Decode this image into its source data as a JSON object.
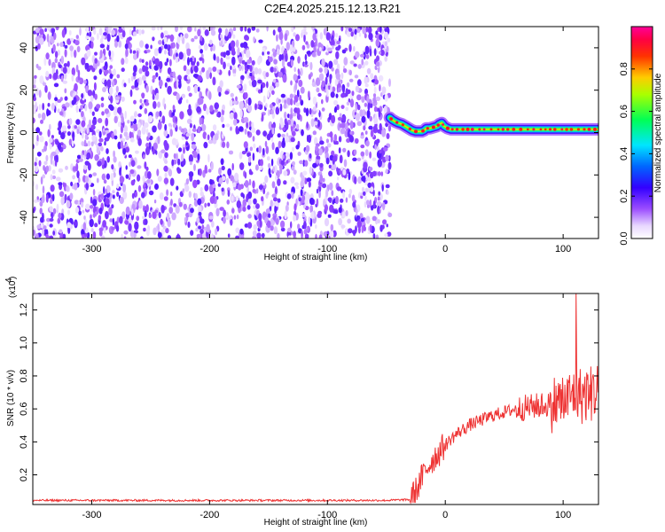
{
  "title": "C2E4.2025.215.12.13.R21",
  "chart_data": [
    {
      "type": "heatmap",
      "title": "C2E4.2025.215.12.13.R21",
      "xlabel": "Height of straight line (km)",
      "ylabel": "Frequency (Hz)",
      "xlim": [
        -350,
        130
      ],
      "ylim": [
        -50,
        50
      ],
      "xticks": [
        -300,
        -200,
        -100,
        0,
        100
      ],
      "yticks": [
        -40,
        -20,
        0,
        20,
        40
      ],
      "colorbar": {
        "label": "Normalized spectral amplitude",
        "range": [
          0.0,
          1.0
        ],
        "ticks": [
          0.0,
          0.2,
          0.4,
          0.6,
          0.8
        ],
        "tick_labels": [
          "0.0",
          "0.2",
          "0.4",
          "0.6",
          "0.8"
        ],
        "colormap": "rainbow (white-violet-blue-cyan-green-yellow-red-magenta)"
      },
      "noise_region": {
        "x": [
          -350,
          -47
        ],
        "amplitude": [
          0.0,
          0.2
        ]
      },
      "signal_ridge": {
        "x": [
          -47,
          -45,
          -42,
          -40,
          -37,
          -34,
          -31,
          -28,
          -25,
          -22,
          -20,
          -18,
          -16,
          -13,
          -10,
          -7,
          -5,
          -3,
          -1,
          2,
          5,
          10,
          20,
          30,
          40,
          50,
          60,
          70,
          80,
          90,
          100,
          110,
          120,
          130
        ],
        "y": [
          7,
          6,
          5,
          4.5,
          4,
          3,
          2,
          1,
          0.5,
          0.5,
          0.5,
          1,
          2,
          2,
          2.5,
          3,
          4,
          4.5,
          3,
          2,
          1.5,
          1.5,
          1.5,
          1.5,
          1.5,
          1.5,
          1.5,
          1.5,
          1.5,
          1.5,
          1.5,
          1.5,
          1.5,
          1.5
        ],
        "peak_amplitude": 0.95
      }
    },
    {
      "type": "line",
      "xlabel": "Height of straight line (km)",
      "ylabel": "SNR (10 * v/v)",
      "y_multiplier": "(x10",
      "y_multiplier_exp": "4",
      "xlim": [
        -350,
        130
      ],
      "ylim": [
        0.02,
        1.3
      ],
      "xticks": [
        -300,
        -200,
        -100,
        0,
        100
      ],
      "yticks": [
        0.2,
        0.4,
        0.6,
        0.8,
        1.0,
        1.2
      ],
      "series": [
        {
          "color": "#ee3333",
          "x": [
            -350,
            -300,
            -250,
            -200,
            -150,
            -100,
            -50,
            -30,
            -25,
            -20,
            -15,
            -10,
            -5,
            0,
            5,
            10,
            20,
            30,
            40,
            50,
            60,
            70,
            80,
            90,
            100,
            105,
            110,
            115,
            120,
            125,
            130
          ],
          "y": [
            0.045,
            0.045,
            0.045,
            0.045,
            0.045,
            0.045,
            0.045,
            0.05,
            0.1,
            0.18,
            0.25,
            0.3,
            0.34,
            0.38,
            0.42,
            0.45,
            0.5,
            0.53,
            0.56,
            0.58,
            0.6,
            0.61,
            0.62,
            0.63,
            0.65,
            0.66,
            0.7,
            0.68,
            0.69,
            0.7,
            0.72
          ]
        }
      ]
    }
  ],
  "labels": {
    "top_xlabel": "Height of straight line (km)",
    "top_ylabel": "Frequency (Hz)",
    "colorbar_label": "Normalized spectral amplitude",
    "bottom_xlabel": "Height of straight line (km)",
    "bottom_ylabel": "SNR (10 * v/v)",
    "bottom_multiplier": "(x10",
    "bottom_multiplier_exp": "4",
    "x_tick_labels": [
      "-300",
      "-200",
      "-100",
      "0",
      "100"
    ],
    "top_y_tick_labels": [
      "-40",
      "-20",
      "0",
      "20",
      "40"
    ],
    "colorbar_tick_labels": [
      "0.0",
      "0.2",
      "0.4",
      "0.6",
      "0.8"
    ],
    "bottom_y_tick_labels": [
      "0.2",
      "0.4",
      "0.6",
      "0.8",
      "1.0",
      "1.2"
    ]
  }
}
